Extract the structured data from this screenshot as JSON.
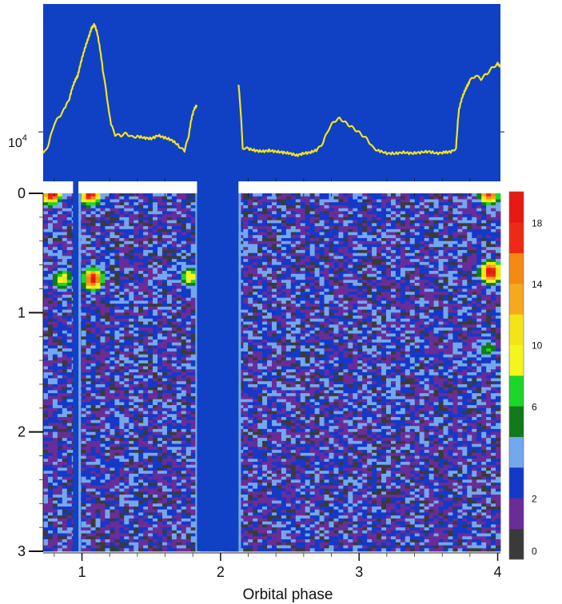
{
  "chart_data": [
    {
      "type": "line",
      "panel": "light-curve",
      "y_scale": "log",
      "y_tick_label": {
        "base": "10",
        "exponent": "4"
      },
      "x_range": [
        0.72,
        4.02
      ],
      "ylim": [
        5000,
        60000
      ],
      "background_color": "#1040c4",
      "line_color": "#f2e51c",
      "gap": [
        1.83,
        2.13
      ],
      "series": [
        {
          "x": [
            0.72,
            0.76,
            0.8,
            0.84,
            0.88,
            0.91,
            0.93,
            0.95,
            0.97,
            0.99,
            1.01,
            1.03,
            1.05,
            1.07,
            1.09,
            1.11,
            1.13,
            1.15,
            1.18,
            1.21,
            1.24,
            1.28,
            1.32,
            1.36,
            1.4,
            1.45,
            1.5,
            1.55,
            1.6,
            1.65,
            1.7,
            1.74,
            1.77,
            1.79,
            1.81,
            1.83,
            2.13,
            2.16,
            2.2,
            2.25,
            2.3,
            2.35,
            2.4,
            2.45,
            2.5,
            2.55,
            2.6,
            2.65,
            2.7,
            2.74,
            2.78,
            2.82,
            2.86,
            2.9,
            2.94,
            2.98,
            3.02,
            3.06,
            3.1,
            3.14,
            3.2,
            3.26,
            3.32,
            3.38,
            3.44,
            3.5,
            3.56,
            3.62,
            3.67,
            3.7,
            3.72,
            3.74,
            3.76,
            3.78,
            3.8,
            3.84,
            3.88,
            3.92,
            3.96,
            4.0,
            4.02
          ],
          "y": [
            7300,
            8400,
            11200,
            12500,
            14000,
            16000,
            18500,
            20500,
            22000,
            26000,
            30000,
            34000,
            38000,
            43000,
            45000,
            40000,
            32000,
            24000,
            16000,
            11000,
            9600,
            9500,
            9800,
            9300,
            9400,
            9200,
            9100,
            9500,
            9200,
            8900,
            8200,
            7600,
            9400,
            12000,
            13800,
            14500,
            19000,
            8000,
            7900,
            7700,
            7600,
            7700,
            7600,
            7500,
            7400,
            7200,
            7400,
            7500,
            7800,
            8600,
            10400,
            11600,
            12100,
            11400,
            10800,
            10200,
            9600,
            9000,
            8000,
            7700,
            7400,
            7400,
            7500,
            7400,
            7500,
            7600,
            7400,
            7500,
            7600,
            8000,
            13500,
            15800,
            17500,
            19000,
            20500,
            22000,
            21000,
            22500,
            24500,
            26000,
            25000
          ]
        }
      ]
    },
    {
      "type": "heatmap",
      "panel": "dynamic-spectrum",
      "xlabel": "Orbital phase",
      "x_range": [
        0.72,
        4.02
      ],
      "y_range": [
        0,
        3
      ],
      "y_inverted": true,
      "x_ticks": [
        1,
        2,
        3,
        4
      ],
      "y_ticks": [
        0,
        1,
        2,
        3
      ],
      "gap": [
        1.83,
        2.13
      ],
      "narrow_gaps": [
        [
          0.935,
          0.975
        ]
      ],
      "columns": 96,
      "rows": 120,
      "colorbar": {
        "levels": [
          0,
          1,
          2,
          3,
          4,
          6,
          8,
          10,
          12,
          14,
          16,
          18,
          20
        ],
        "tick_labels": [
          {
            "value": 0,
            "label": "0"
          },
          {
            "value": 2,
            "label": "2"
          },
          {
            "value": 6,
            "label": "6"
          },
          {
            "value": 10,
            "label": "10"
          },
          {
            "value": 14,
            "label": "14"
          },
          {
            "value": 18,
            "label": "18"
          }
        ],
        "colors": [
          "#3a3a3a",
          "#6a2c96",
          "#1438c8",
          "#74a8ee",
          "#137a1c",
          "#1ed62a",
          "#f4f41e",
          "#f2e416",
          "#f5a91e",
          "#f48a12",
          "#ee2a14",
          "#e81812"
        ]
      },
      "hotspots": [
        {
          "x": 0.78,
          "y": 0.0,
          "level": 19
        },
        {
          "x": 1.06,
          "y": 0.0,
          "level": 19
        },
        {
          "x": 1.08,
          "y": 0.72,
          "level": 18
        },
        {
          "x": 0.86,
          "y": 0.72,
          "level": 9
        },
        {
          "x": 1.78,
          "y": 0.7,
          "level": 9
        },
        {
          "x": 3.95,
          "y": 0.66,
          "level": 19
        },
        {
          "x": 3.94,
          "y": 0.0,
          "level": 17
        },
        {
          "x": 3.92,
          "y": 1.3,
          "level": 5
        }
      ]
    }
  ]
}
